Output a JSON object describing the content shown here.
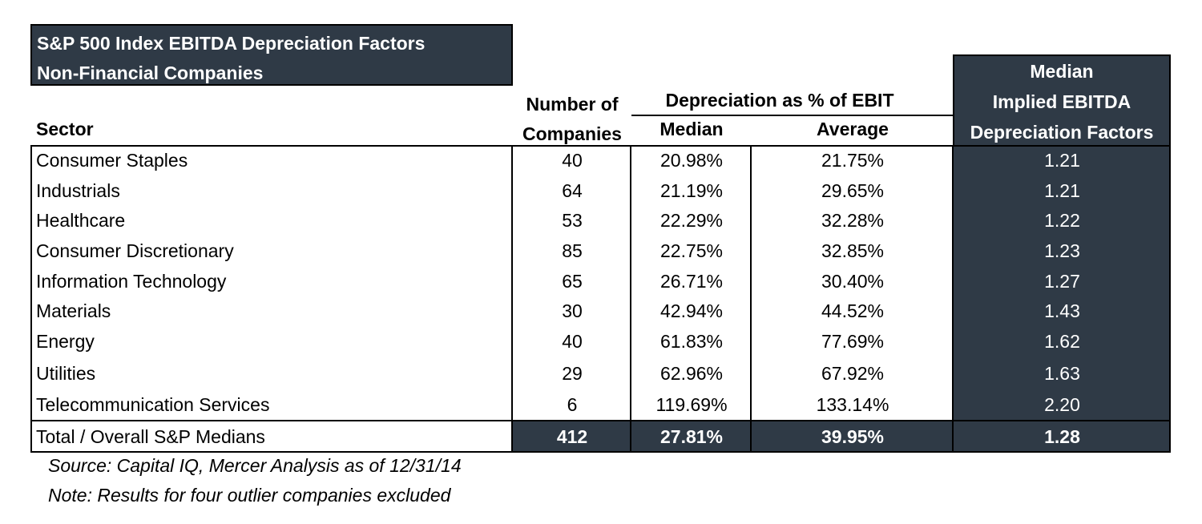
{
  "title": {
    "line1": "S&P 500 Index EBITDA Depreciation Factors",
    "line2": "Non-Financial Companies"
  },
  "headers": {
    "sector": "Sector",
    "number_line1": "Number of",
    "number_line2": "Companies",
    "depreciation_group": "Depreciation as % of EBIT",
    "median": "Median",
    "average": "Average",
    "factor_line1": "Median",
    "factor_line2": "Implied EBITDA",
    "factor_line3": "Depreciation Factors"
  },
  "rows": [
    {
      "sector": "Consumer Staples",
      "number": "40",
      "median": "20.98%",
      "average": "21.75%",
      "factor": "1.21"
    },
    {
      "sector": "Industrials",
      "number": "64",
      "median": "21.19%",
      "average": "29.65%",
      "factor": "1.21"
    },
    {
      "sector": "Healthcare",
      "number": "53",
      "median": "22.29%",
      "average": "32.28%",
      "factor": "1.22"
    },
    {
      "sector": "Consumer Discretionary",
      "number": "85",
      "median": "22.75%",
      "average": "32.85%",
      "factor": "1.23"
    },
    {
      "sector": "Information Technology",
      "number": "65",
      "median": "26.71%",
      "average": "30.40%",
      "factor": "1.27"
    },
    {
      "sector": "Materials",
      "number": "30",
      "median": "42.94%",
      "average": "44.52%",
      "factor": "1.43"
    },
    {
      "sector": "Energy",
      "number": "40",
      "median": "61.83%",
      "average": "77.69%",
      "factor": "1.62"
    },
    {
      "sector": "Utilities",
      "number": "29",
      "median": "62.96%",
      "average": "67.92%",
      "factor": "1.63"
    },
    {
      "sector": "Telecommunication Services",
      "number": "6",
      "median": "119.69%",
      "average": "133.14%",
      "factor": "2.20"
    }
  ],
  "total": {
    "sector": "Total / Overall S&P Medians",
    "number": "412",
    "median": "27.81%",
    "average": "39.95%",
    "factor": "1.28"
  },
  "notes": {
    "source": "Source: Capital IQ, Mercer Analysis as of 12/31/14",
    "note": "Note: Results for four outlier companies excluded"
  },
  "colors": {
    "dark_fill": "#2f3a46",
    "border": "#000000"
  }
}
